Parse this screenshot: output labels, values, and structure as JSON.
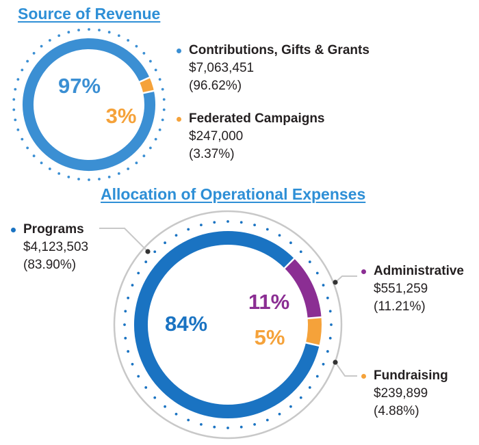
{
  "colors": {
    "title": "#2e8fd6",
    "blue1": "#3b8fd3",
    "blue2": "#1a73c2",
    "orange": "#f5a23a",
    "purple": "#8b2e93",
    "gray": "#c8c8c8",
    "connector": "#333333"
  },
  "chart_data": [
    {
      "type": "pie",
      "title": "Source of Revenue",
      "categories": [
        "Contributions, Gifts & Grants",
        "Federated Campaigns"
      ],
      "values": [
        7063451,
        247000
      ],
      "amounts": [
        "$7,063,451",
        "$247,000"
      ],
      "percent_labels": [
        "(96.62%)",
        "(3.37%)"
      ],
      "chart_labels": [
        "97%",
        "3%"
      ],
      "percents": [
        96.62,
        3.37
      ],
      "colors": [
        "#3b8fd3",
        "#f5a23a"
      ]
    },
    {
      "type": "pie",
      "title": "Allocation of Operational Expenses",
      "categories": [
        "Programs",
        "Administrative",
        "Fundraising"
      ],
      "values": [
        4123503,
        551259,
        239899
      ],
      "amounts": [
        "$4,123,503",
        "$551,259",
        "$239,899"
      ],
      "percent_labels": [
        "(83.90%)",
        "(11.21%)",
        "(4.88%)"
      ],
      "chart_labels": [
        "84%",
        "11%",
        "5%"
      ],
      "percents": [
        83.9,
        11.21,
        4.88
      ],
      "colors": [
        "#1a73c2",
        "#8b2e93",
        "#f5a23a"
      ]
    }
  ]
}
